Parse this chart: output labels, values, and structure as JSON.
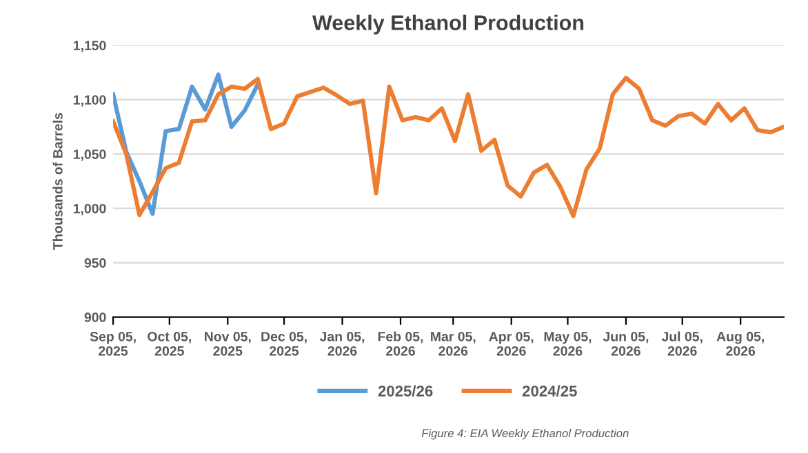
{
  "chart_data": {
    "type": "line",
    "title": "Weekly Ethanol Production",
    "ylabel": "Thousands of Barrels",
    "annotations": [
      "Figure 4: EIA Weekly Ethanol Production"
    ],
    "x": [
      "2025-09-05",
      "2025-09-12",
      "2025-09-19",
      "2025-09-26",
      "2025-10-03",
      "2025-10-10",
      "2025-10-17",
      "2025-10-24",
      "2025-10-31",
      "2025-11-07",
      "2025-11-14",
      "2025-11-21",
      "2025-11-28",
      "2025-12-05",
      "2025-12-12",
      "2025-12-19",
      "2025-12-26",
      "2026-01-02",
      "2026-01-09",
      "2026-01-16",
      "2026-01-23",
      "2026-01-30",
      "2026-02-06",
      "2026-02-13",
      "2026-02-20",
      "2026-02-27",
      "2026-03-06",
      "2026-03-13",
      "2026-03-20",
      "2026-03-27",
      "2026-04-03",
      "2026-04-10",
      "2026-04-17",
      "2026-04-24",
      "2026-05-01",
      "2026-05-08",
      "2026-05-15",
      "2026-05-22",
      "2026-05-29",
      "2026-06-05",
      "2026-06-12",
      "2026-06-19",
      "2026-06-26",
      "2026-07-03",
      "2026-07-10",
      "2026-07-17",
      "2026-07-24",
      "2026-07-31",
      "2026-08-07",
      "2026-08-14",
      "2026-08-21",
      "2026-08-28"
    ],
    "series": [
      {
        "name": "2025/26",
        "color": "#5b9bd5",
        "values": [
          1105,
          1052,
          1025,
          995,
          1071,
          1073,
          1112,
          1091,
          1123,
          1075,
          1090,
          1114,
          null,
          null,
          null,
          null,
          null,
          null,
          null,
          null,
          null,
          null,
          null,
          null,
          null,
          null,
          null,
          null,
          null,
          null,
          null,
          null,
          null,
          null,
          null,
          null,
          null,
          null,
          null,
          null,
          null,
          null,
          null,
          null,
          null,
          null,
          null,
          null,
          null,
          null,
          null,
          null
        ]
      },
      {
        "name": "2024/25",
        "color": "#ed7d31",
        "values": [
          1080,
          1050,
          994,
          1015,
          1037,
          1042,
          1080,
          1081,
          1105,
          1112,
          1110,
          1119,
          1073,
          1078,
          1103,
          1107,
          1111,
          1104,
          1096,
          1099,
          1014,
          1112,
          1081,
          1084,
          1081,
          1092,
          1062,
          1105,
          1053,
          1063,
          1021,
          1011,
          1033,
          1040,
          1020,
          993,
          1036,
          1055,
          1105,
          1120,
          1110,
          1081,
          1076,
          1085,
          1087,
          1078,
          1096,
          1081,
          1092,
          1072,
          1070,
          1075
        ]
      }
    ],
    "xlim": [
      "2025-09-05",
      "2026-08-28"
    ],
    "xticks": [
      {
        "value": "2025-09-05",
        "label": "Sep 05,\n2025"
      },
      {
        "value": "2025-10-05",
        "label": "Oct 05,\n2025"
      },
      {
        "value": "2025-11-05",
        "label": "Nov 05,\n2025"
      },
      {
        "value": "2025-12-05",
        "label": "Dec 05,\n2025"
      },
      {
        "value": "2026-01-05",
        "label": "Jan 05,\n2026"
      },
      {
        "value": "2026-02-05",
        "label": "Feb 05,\n2026"
      },
      {
        "value": "2026-03-05",
        "label": "Mar 05,\n2026"
      },
      {
        "value": "2026-04-05",
        "label": "Apr 05,\n2026"
      },
      {
        "value": "2026-05-05",
        "label": "May 05,\n2026"
      },
      {
        "value": "2026-06-05",
        "label": "Jun 05,\n2026"
      },
      {
        "value": "2026-07-05",
        "label": "Jul 05,\n2026"
      },
      {
        "value": "2026-08-05",
        "label": "Aug 05,\n2026"
      }
    ],
    "ylim": [
      900,
      1150
    ],
    "yticks": [
      {
        "value": 900,
        "label": "900"
      },
      {
        "value": 950,
        "label": "950"
      },
      {
        "value": 1000,
        "label": "1,000"
      },
      {
        "value": 1050,
        "label": "1,050"
      },
      {
        "value": 1100,
        "label": "1,100"
      },
      {
        "value": 1150,
        "label": "1,150"
      }
    ],
    "grid": "y",
    "legend": "bottom",
    "marker": "none",
    "line_style": "solid"
  }
}
